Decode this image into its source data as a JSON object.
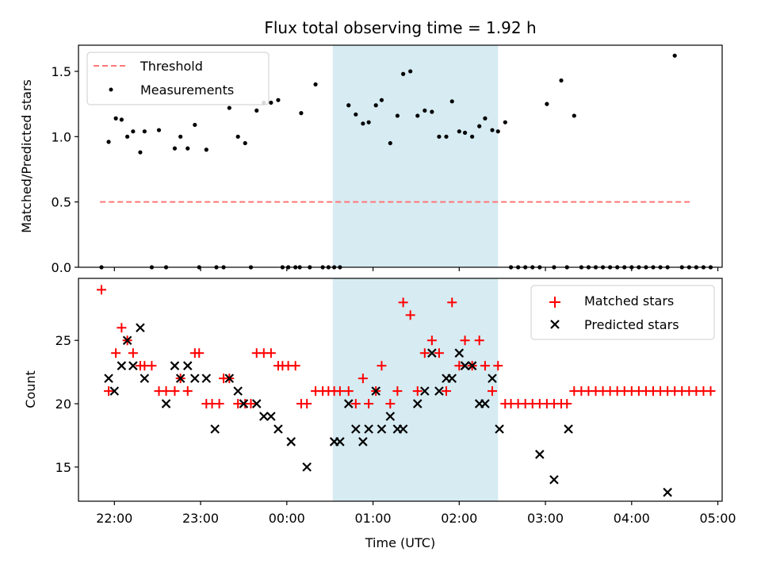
{
  "figure": {
    "title": "Flux total observing time = 1.92 h",
    "xlabel": "Time (UTC)"
  },
  "chart_data": [
    {
      "type": "scatter",
      "title": "Flux total observing time = 1.92 h",
      "ylabel": "Matched/Predicted stars",
      "xlim": [
        "21:35",
        "05:03"
      ],
      "ylim": [
        0.0,
        1.7
      ],
      "yticks": [
        0.0,
        0.5,
        1.0,
        1.5
      ],
      "xticks": [
        "22:00",
        "23:00",
        "00:00",
        "01:00",
        "02:00",
        "03:00",
        "04:00",
        "05:00"
      ],
      "legend": {
        "placement": "top-left",
        "entries": [
          "Threshold",
          "Measurements"
        ]
      },
      "highlight_span": {
        "from": "00:32",
        "to": "02:27",
        "color": "#add8e6"
      },
      "threshold": {
        "name": "Threshold",
        "y": 0.5,
        "x_from": "21:50",
        "x_to": "04:42",
        "color": "#ff7777",
        "style": "dashed"
      },
      "series": [
        {
          "name": "Measurements",
          "color": "#000000",
          "marker": "dot",
          "points": [
            [
              "21:51",
              0.0
            ],
            [
              "21:56",
              0.96
            ],
            [
              "22:01",
              1.14
            ],
            [
              "22:05",
              1.13
            ],
            [
              "22:09",
              1.0
            ],
            [
              "22:13",
              1.04
            ],
            [
              "22:18",
              0.88
            ],
            [
              "22:21",
              1.04
            ],
            [
              "22:26",
              0.0
            ],
            [
              "22:31",
              1.05
            ],
            [
              "22:36",
              0.0
            ],
            [
              "22:42",
              0.91
            ],
            [
              "22:46",
              1.0
            ],
            [
              "22:51",
              0.91
            ],
            [
              "22:56",
              1.09
            ],
            [
              "22:59",
              0.0
            ],
            [
              "23:04",
              0.9
            ],
            [
              "23:11",
              0.0
            ],
            [
              "23:16",
              0.0
            ],
            [
              "23:20",
              1.22
            ],
            [
              "23:26",
              1.0
            ],
            [
              "23:31",
              0.95
            ],
            [
              "23:35",
              0.0
            ],
            [
              "23:39",
              1.2
            ],
            [
              "23:44",
              1.26
            ],
            [
              "23:49",
              1.26
            ],
            [
              "23:54",
              1.28
            ],
            [
              "23:57",
              0.0
            ],
            [
              "00:01",
              0.0
            ],
            [
              "00:06",
              0.0
            ],
            [
              "00:09",
              0.0
            ],
            [
              "00:10",
              1.18
            ],
            [
              "00:16",
              0.0
            ],
            [
              "00:20",
              1.4
            ],
            [
              "00:25",
              0.0
            ],
            [
              "00:29",
              0.0
            ],
            [
              "00:33",
              0.0
            ],
            [
              "00:37",
              0.0
            ],
            [
              "00:43",
              1.24
            ],
            [
              "00:48",
              1.17
            ],
            [
              "00:53",
              1.1
            ],
            [
              "00:57",
              1.11
            ],
            [
              "01:02",
              1.24
            ],
            [
              "01:06",
              1.28
            ],
            [
              "01:12",
              0.95
            ],
            [
              "01:17",
              1.16
            ],
            [
              "01:21",
              1.48
            ],
            [
              "01:26",
              1.5
            ],
            [
              "01:31",
              1.16
            ],
            [
              "01:36",
              1.2
            ],
            [
              "01:41",
              1.19
            ],
            [
              "01:46",
              1.0
            ],
            [
              "01:51",
              1.0
            ],
            [
              "01:55",
              1.27
            ],
            [
              "02:00",
              1.04
            ],
            [
              "02:04",
              1.03
            ],
            [
              "02:09",
              1.0
            ],
            [
              "02:14",
              1.08
            ],
            [
              "02:18",
              1.14
            ],
            [
              "02:23",
              1.05
            ],
            [
              "02:27",
              1.04
            ],
            [
              "02:32",
              1.11
            ],
            [
              "02:36",
              0.0
            ],
            [
              "02:41",
              0.0
            ],
            [
              "02:46",
              0.0
            ],
            [
              "02:51",
              0.0
            ],
            [
              "02:56",
              0.0
            ],
            [
              "03:01",
              1.25
            ],
            [
              "03:06",
              0.0
            ],
            [
              "03:11",
              1.43
            ],
            [
              "03:15",
              0.0
            ],
            [
              "03:20",
              1.16
            ],
            [
              "03:25",
              0.0
            ],
            [
              "03:30",
              0.0
            ],
            [
              "03:35",
              0.0
            ],
            [
              "03:40",
              0.0
            ],
            [
              "03:45",
              0.0
            ],
            [
              "03:50",
              0.0
            ],
            [
              "03:55",
              0.0
            ],
            [
              "04:00",
              0.0
            ],
            [
              "04:05",
              0.0
            ],
            [
              "04:10",
              0.0
            ],
            [
              "04:15",
              0.0
            ],
            [
              "04:20",
              0.0
            ],
            [
              "04:25",
              0.0
            ],
            [
              "04:30",
              1.62
            ],
            [
              "04:35",
              0.0
            ],
            [
              "04:40",
              0.0
            ],
            [
              "04:45",
              0.0
            ],
            [
              "04:50",
              0.0
            ],
            [
              "04:55",
              0.0
            ]
          ]
        }
      ]
    },
    {
      "type": "scatter",
      "ylabel": "Count",
      "xlabel": "Time (UTC)",
      "xlim": [
        "21:35",
        "05:03"
      ],
      "ylim": [
        12.3,
        29.9
      ],
      "yticks": [
        15,
        20,
        25
      ],
      "xticks": [
        "22:00",
        "23:00",
        "00:00",
        "01:00",
        "02:00",
        "03:00",
        "04:00",
        "05:00"
      ],
      "legend": {
        "placement": "top-right",
        "entries": [
          "Matched stars",
          "Predicted stars"
        ]
      },
      "highlight_span": {
        "from": "00:32",
        "to": "02:27",
        "color": "#add8e6"
      },
      "series": [
        {
          "name": "Matched stars",
          "color": "#ff0000",
          "marker": "plus",
          "points": [
            [
              "21:51",
              29
            ],
            [
              "21:56",
              21
            ],
            [
              "22:01",
              24
            ],
            [
              "22:05",
              26
            ],
            [
              "22:09",
              25
            ],
            [
              "22:13",
              24
            ],
            [
              "22:18",
              23
            ],
            [
              "22:21",
              23
            ],
            [
              "22:26",
              23
            ],
            [
              "22:31",
              21
            ],
            [
              "22:36",
              21
            ],
            [
              "22:42",
              21
            ],
            [
              "22:46",
              22
            ],
            [
              "22:51",
              21
            ],
            [
              "22:56",
              24
            ],
            [
              "22:59",
              24
            ],
            [
              "23:04",
              20
            ],
            [
              "23:08",
              20
            ],
            [
              "23:13",
              20
            ],
            [
              "23:16",
              22
            ],
            [
              "23:20",
              22
            ],
            [
              "23:26",
              20
            ],
            [
              "23:31",
              20
            ],
            [
              "23:35",
              20
            ],
            [
              "23:39",
              24
            ],
            [
              "23:44",
              24
            ],
            [
              "23:49",
              24
            ],
            [
              "23:54",
              23
            ],
            [
              "23:57",
              23
            ],
            [
              "00:01",
              23
            ],
            [
              "00:06",
              23
            ],
            [
              "00:10",
              20
            ],
            [
              "00:14",
              20
            ],
            [
              "00:20",
              21
            ],
            [
              "00:25",
              21
            ],
            [
              "00:29",
              21
            ],
            [
              "00:33",
              21
            ],
            [
              "00:37",
              21
            ],
            [
              "00:43",
              21
            ],
            [
              "00:48",
              20
            ],
            [
              "00:53",
              22
            ],
            [
              "00:57",
              20
            ],
            [
              "01:02",
              21
            ],
            [
              "01:06",
              23
            ],
            [
              "01:12",
              20
            ],
            [
              "01:17",
              21
            ],
            [
              "01:21",
              28
            ],
            [
              "01:26",
              27
            ],
            [
              "01:31",
              21
            ],
            [
              "01:36",
              24
            ],
            [
              "01:41",
              25
            ],
            [
              "01:46",
              24
            ],
            [
              "01:51",
              21
            ],
            [
              "01:55",
              28
            ],
            [
              "02:00",
              23
            ],
            [
              "02:04",
              25
            ],
            [
              "02:09",
              23
            ],
            [
              "02:14",
              25
            ],
            [
              "02:18",
              23
            ],
            [
              "02:23",
              21
            ],
            [
              "02:27",
              23
            ],
            [
              "02:32",
              20
            ],
            [
              "02:36",
              20
            ],
            [
              "02:41",
              20
            ],
            [
              "02:46",
              20
            ],
            [
              "02:51",
              20
            ],
            [
              "02:56",
              20
            ],
            [
              "03:01",
              20
            ],
            [
              "03:06",
              20
            ],
            [
              "03:11",
              20
            ],
            [
              "03:15",
              20
            ],
            [
              "03:20",
              21
            ],
            [
              "03:25",
              21
            ],
            [
              "03:30",
              21
            ],
            [
              "03:35",
              21
            ],
            [
              "03:40",
              21
            ],
            [
              "03:45",
              21
            ],
            [
              "03:50",
              21
            ],
            [
              "03:55",
              21
            ],
            [
              "04:00",
              21
            ],
            [
              "04:05",
              21
            ],
            [
              "04:10",
              21
            ],
            [
              "04:15",
              21
            ],
            [
              "04:20",
              21
            ],
            [
              "04:25",
              21
            ],
            [
              "04:30",
              21
            ],
            [
              "04:35",
              21
            ],
            [
              "04:40",
              21
            ],
            [
              "04:45",
              21
            ],
            [
              "04:50",
              21
            ],
            [
              "04:55",
              21
            ]
          ]
        },
        {
          "name": "Predicted stars",
          "color": "#000000",
          "marker": "x",
          "points": [
            [
              "21:56",
              22
            ],
            [
              "22:00",
              21
            ],
            [
              "22:05",
              23
            ],
            [
              "22:09",
              25
            ],
            [
              "22:13",
              23
            ],
            [
              "22:18",
              26
            ],
            [
              "22:21",
              22
            ],
            [
              "22:36",
              20
            ],
            [
              "22:42",
              23
            ],
            [
              "22:46",
              22
            ],
            [
              "22:51",
              23
            ],
            [
              "22:56",
              22
            ],
            [
              "23:04",
              22
            ],
            [
              "23:10",
              18
            ],
            [
              "23:20",
              22
            ],
            [
              "23:26",
              21
            ],
            [
              "23:30",
              20
            ],
            [
              "23:39",
              20
            ],
            [
              "23:44",
              19
            ],
            [
              "23:49",
              19
            ],
            [
              "23:54",
              18
            ],
            [
              "00:03",
              17
            ],
            [
              "00:14",
              15
            ],
            [
              "00:33",
              17
            ],
            [
              "00:37",
              17
            ],
            [
              "00:43",
              20
            ],
            [
              "00:48",
              18
            ],
            [
              "00:53",
              17
            ],
            [
              "00:57",
              18
            ],
            [
              "01:02",
              21
            ],
            [
              "01:06",
              18
            ],
            [
              "01:12",
              19
            ],
            [
              "01:17",
              18
            ],
            [
              "01:21",
              18
            ],
            [
              "01:31",
              20
            ],
            [
              "01:36",
              21
            ],
            [
              "01:41",
              24
            ],
            [
              "01:46",
              21
            ],
            [
              "01:51",
              22
            ],
            [
              "01:55",
              22
            ],
            [
              "02:00",
              24
            ],
            [
              "02:04",
              23
            ],
            [
              "02:09",
              23
            ],
            [
              "02:14",
              20
            ],
            [
              "02:18",
              20
            ],
            [
              "02:23",
              22
            ],
            [
              "02:28",
              18
            ],
            [
              "02:56",
              16
            ],
            [
              "03:06",
              14
            ],
            [
              "03:16",
              18
            ],
            [
              "04:25",
              13
            ]
          ]
        }
      ]
    }
  ]
}
